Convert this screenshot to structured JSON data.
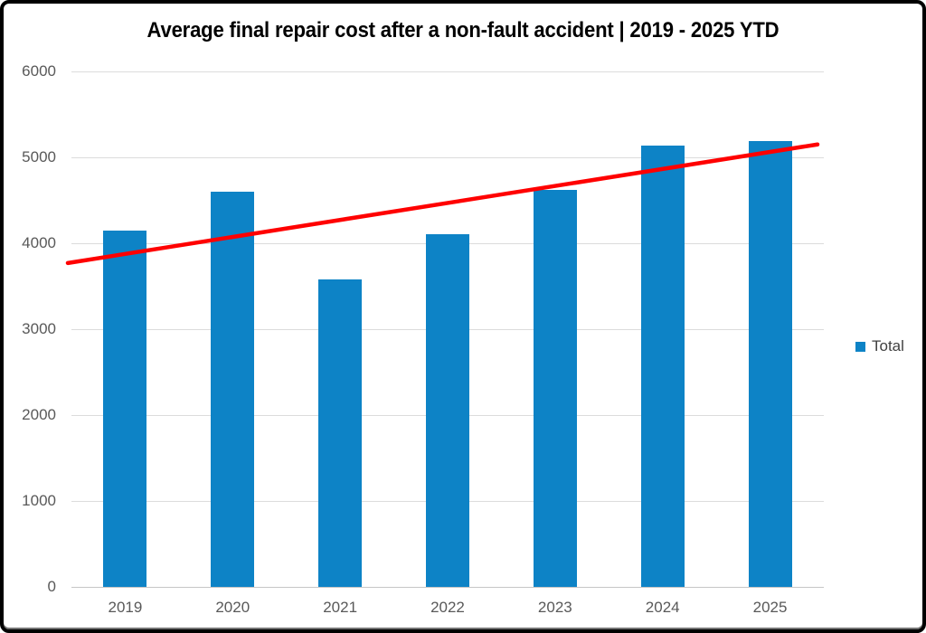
{
  "page": {
    "background": "#ffffff",
    "border_color": "#000000"
  },
  "chart_data": {
    "type": "bar",
    "title": "Average final repair cost after a non-fault accident | 2019 - 2025 YTD",
    "categories": [
      "2019",
      "2020",
      "2021",
      "2022",
      "2023",
      "2024",
      "2025"
    ],
    "series": [
      {
        "name": "Total",
        "color": "#0d83c6",
        "values": [
          4145,
          4600,
          3580,
          4110,
          4620,
          5140,
          5185
        ]
      }
    ],
    "trendline": {
      "color": "#ff0000",
      "start_value": 3770,
      "end_value": 5150,
      "stroke_width": 4.5
    },
    "xlabel": "",
    "ylabel": "",
    "ylim": [
      0,
      6000
    ],
    "ytick_step": 1000,
    "yticks": [
      0,
      1000,
      2000,
      3000,
      4000,
      5000,
      6000
    ],
    "grid": true,
    "legend": {
      "label": "Total",
      "position": "right"
    },
    "colors": {
      "grid": "#dcdcdc",
      "axis": "#c6c6c6",
      "tick_label": "#595959",
      "legend_label": "#404040",
      "title": "#000000"
    }
  }
}
